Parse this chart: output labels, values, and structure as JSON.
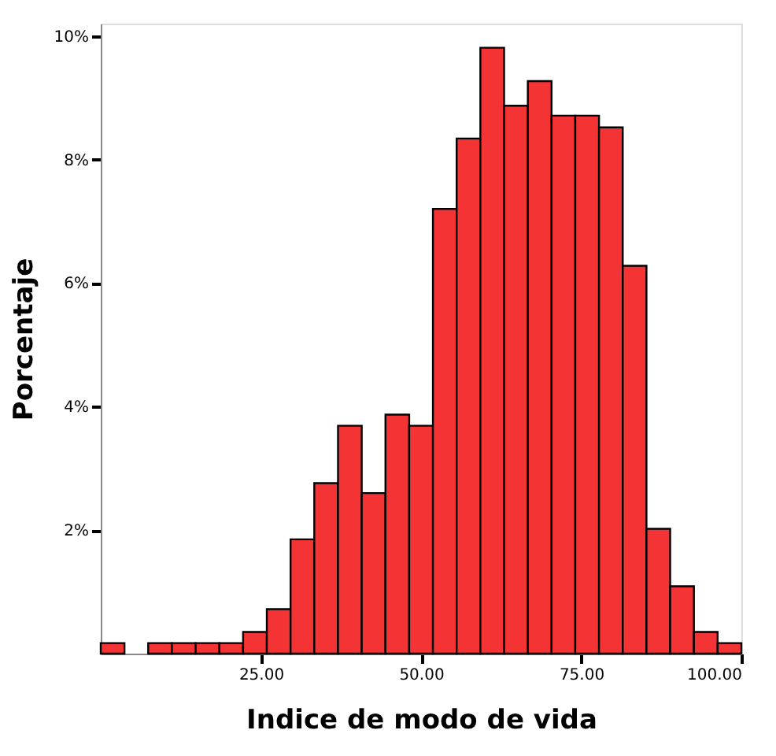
{
  "chart_data": {
    "type": "histogram",
    "xlabel": "Indice de modo de vida",
    "ylabel": "Porcentaje",
    "bins": [
      0,
      3.7037,
      7.4074,
      11.1111,
      14.8148,
      18.5185,
      22.2222,
      25.9259,
      29.6296,
      33.3333,
      37.037,
      40.7407,
      44.4444,
      48.1481,
      51.8519,
      55.5556,
      59.2593,
      62.963,
      66.6667,
      70.3704,
      74.0741,
      77.7778,
      81.4815,
      85.1852,
      88.8889,
      92.5926,
      96.2963,
      100
    ],
    "values": [
      0.17,
      0,
      0.17,
      0.17,
      0.17,
      0.17,
      0.35,
      0.72,
      1.85,
      2.76,
      3.69,
      2.6,
      3.87,
      3.69,
      7.2,
      8.34,
      9.81,
      8.87,
      9.27,
      8.71,
      8.71,
      8.52,
      6.28,
      2.02,
      1.09,
      0.35,
      0.17
    ],
    "color": "#f43434",
    "xlim": [
      0,
      100
    ],
    "ylim": [
      0,
      10.2
    ],
    "xticks": [
      {
        "value": 25,
        "label": "25.00"
      },
      {
        "value": 50,
        "label": "50.00"
      },
      {
        "value": 75,
        "label": "75.00"
      },
      {
        "value": 100,
        "label": "100.00"
      }
    ],
    "yticks": [
      {
        "value": 2,
        "label": "2%"
      },
      {
        "value": 4,
        "label": "4%"
      },
      {
        "value": 6,
        "label": "6%"
      },
      {
        "value": 8,
        "label": "8%"
      },
      {
        "value": 10,
        "label": "10%"
      }
    ],
    "grid": false
  }
}
